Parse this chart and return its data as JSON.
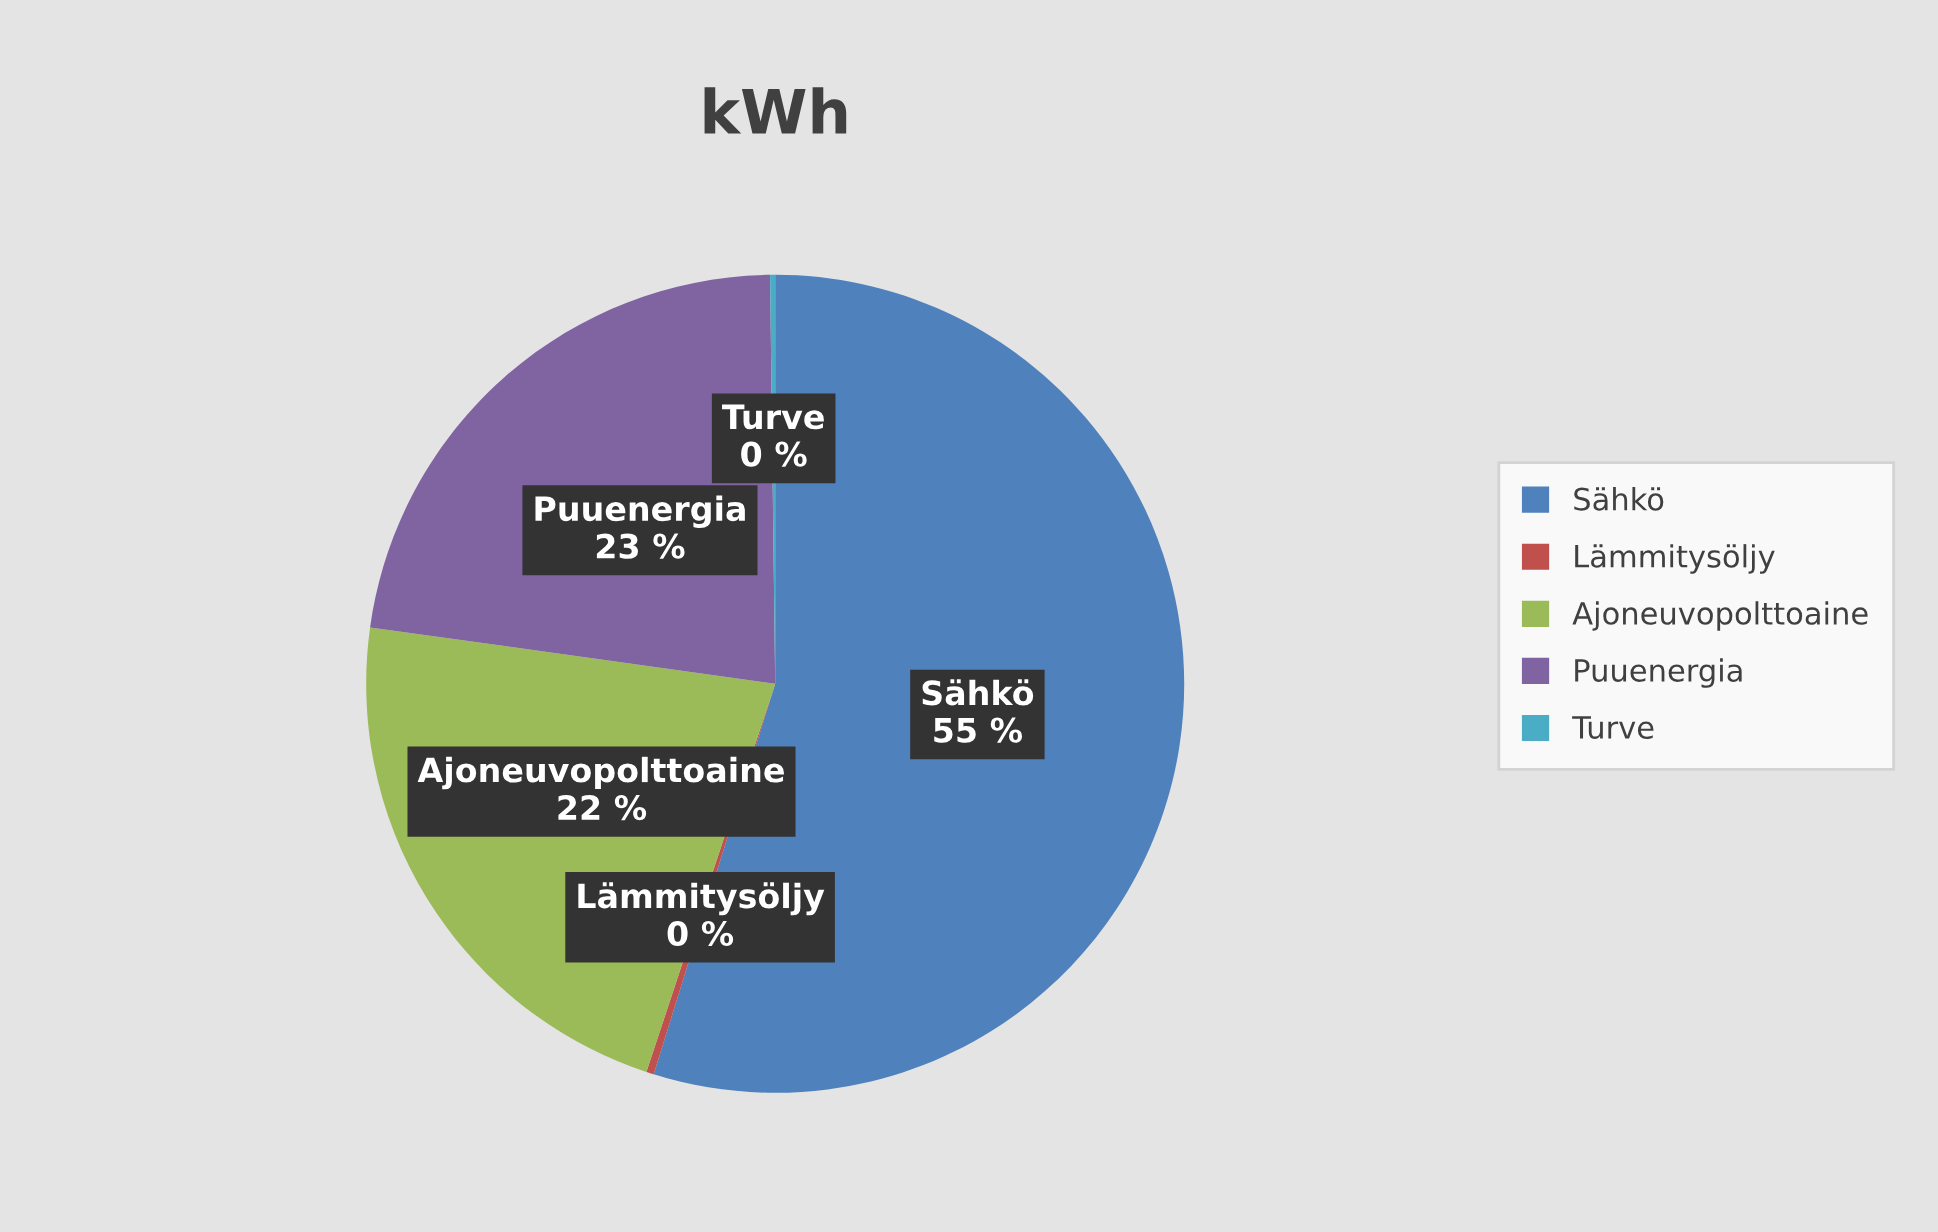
{
  "chart_data": {
    "type": "pie",
    "title": "kWh",
    "categories": [
      "Sähkö",
      "Lämmitysöljy",
      "Ajoneuvopolttoaine",
      "Puuenergia",
      "Turve"
    ],
    "values": [
      54.8,
      0.3,
      22.1,
      22.6,
      0.2
    ],
    "value_labels": [
      "55 %",
      "0 %",
      "22 %",
      "23 %",
      "0 %"
    ],
    "colors": [
      "#4f81bd",
      "#c0504d",
      "#9bbb59",
      "#8064a2",
      "#4bacc6"
    ],
    "legend": "right"
  }
}
